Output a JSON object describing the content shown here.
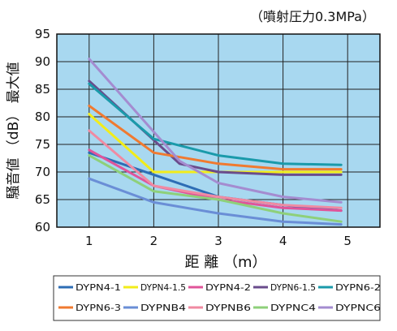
{
  "chart_data": {
    "type": "line",
    "condition": "（噴射圧力0.3MPa）",
    "xlabel": "距 離 （m）",
    "ylabel": "騒音値 （dB） 最大値",
    "xlim": [
      0.5,
      5.5
    ],
    "ylim": [
      60,
      95
    ],
    "x_ticks": [
      "1",
      "2",
      "3",
      "4",
      "5"
    ],
    "y_ticks": [
      "60",
      "65",
      "70",
      "75",
      "80",
      "85",
      "90",
      "95"
    ],
    "grid": true,
    "plot_background": "#a8d8f0",
    "legend_position": "bottom",
    "series": [
      {
        "name": "DYPN4-1",
        "color": "#2d6db5",
        "x": [
          1,
          2,
          3,
          4,
          4.9
        ],
        "y": [
          73.5,
          69.5,
          65.5,
          64,
          63
        ]
      },
      {
        "name": "DYPN4-1.5",
        "color": "#f2ec1a",
        "x": [
          1,
          2,
          3,
          4,
          4.9
        ],
        "y": [
          80.5,
          70,
          70,
          70,
          70
        ]
      },
      {
        "name": "DYPN4-2",
        "color": "#e0549a",
        "x": [
          1,
          2,
          3,
          4,
          4.9
        ],
        "y": [
          74,
          67.5,
          65,
          63.5,
          63
        ]
      },
      {
        "name": "DYPN6-1.5",
        "color": "#6a4c8c",
        "x": [
          1,
          2.4,
          3,
          4,
          4.9
        ],
        "y": [
          86.5,
          71.5,
          70,
          69.5,
          69.5
        ]
      },
      {
        "name": "DYPN6-2",
        "color": "#1a9aaa",
        "x": [
          1,
          2,
          3,
          4,
          4.9
        ],
        "y": [
          86,
          76,
          73,
          71.5,
          71.3
        ]
      },
      {
        "name": "DYPN6-3",
        "color": "#f07a30",
        "x": [
          1,
          2,
          3,
          4,
          4.9
        ],
        "y": [
          82,
          73.5,
          71.5,
          70.5,
          70.5
        ]
      },
      {
        "name": "DYPNB4",
        "color": "#6a8ed6",
        "x": [
          1,
          2,
          3,
          4,
          4.9
        ],
        "y": [
          68.8,
          64.5,
          62.5,
          61,
          60.5
        ]
      },
      {
        "name": "DYPNB6",
        "color": "#f08aa2",
        "x": [
          1,
          2,
          3,
          4,
          4.9
        ],
        "y": [
          77.5,
          67.5,
          65.5,
          64,
          63.5
        ]
      },
      {
        "name": "DYPNC4",
        "color": "#8ed07a",
        "x": [
          1,
          2,
          3,
          4,
          4.9
        ],
        "y": [
          73,
          66.5,
          65,
          62.5,
          61
        ]
      },
      {
        "name": "DYPNC6",
        "color": "#a48cd0",
        "x": [
          1,
          2.4,
          3,
          4,
          4.9
        ],
        "y": [
          90.5,
          72,
          68,
          65.5,
          64.5
        ]
      }
    ]
  }
}
